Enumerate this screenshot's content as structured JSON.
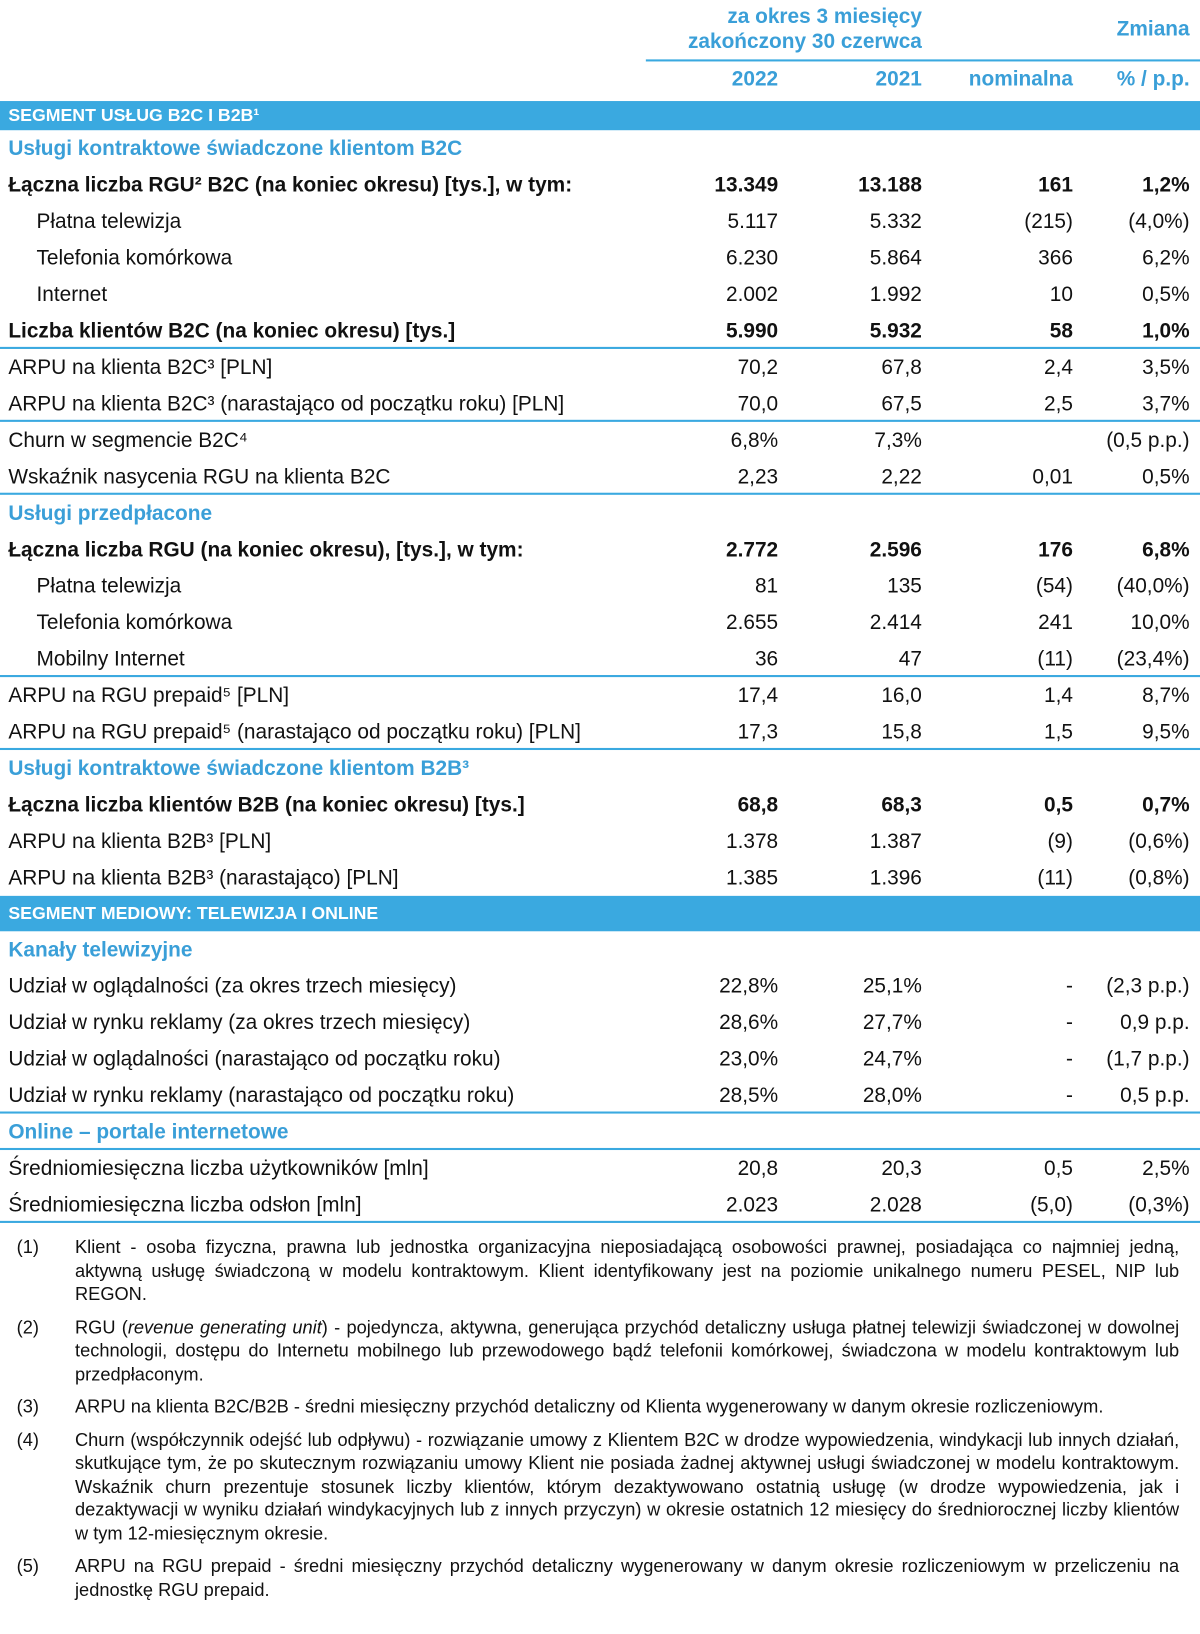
{
  "header": {
    "period_line1": "za okres 3 miesięcy",
    "period_line2": "zakończony 30 czerwca",
    "change": "Zmiana",
    "col_2022": "2022",
    "col_2021": "2021",
    "col_nominal": "nominalna",
    "col_pct": "% / p.p."
  },
  "colors": {
    "accent": "#3aa9e0",
    "subheader_text": "#3a9fd8"
  },
  "rows": [
    {
      "type": "band",
      "label": "SEGMENT USŁUG B2C I B2B¹"
    },
    {
      "type": "sub",
      "label": "Usługi kontraktowe świadczone klientom B2C"
    },
    {
      "type": "bold",
      "label": "Łączna liczba RGU² B2C (na koniec okresu) [tys.], w tym:",
      "values": [
        "13.349",
        "13.188",
        "161",
        "1,2%"
      ]
    },
    {
      "type": "ind",
      "label": "Płatna telewizja",
      "values": [
        "5.117",
        "5.332",
        "(215)",
        "(4,0%)"
      ]
    },
    {
      "type": "ind",
      "label": "Telefonia komórkowa",
      "values": [
        "6.230",
        "5.864",
        "366",
        "6,2%"
      ]
    },
    {
      "type": "ind",
      "label": "Internet",
      "values": [
        "2.002",
        "1.992",
        "10",
        "0,5%"
      ]
    },
    {
      "type": "bold",
      "line": true,
      "label": "Liczba klientów B2C (na koniec okresu) [tys.]",
      "values": [
        "5.990",
        "5.932",
        "58",
        "1,0%"
      ]
    },
    {
      "type": "norm",
      "label": "ARPU na klienta B2C³ [PLN]",
      "values": [
        "70,2",
        "67,8",
        "2,4",
        "3,5%"
      ]
    },
    {
      "type": "norm",
      "line": true,
      "label": "ARPU na klienta B2C³ (narastająco od początku roku) [PLN]",
      "values": [
        "70,0",
        "67,5",
        "2,5",
        "3,7%"
      ]
    },
    {
      "type": "norm",
      "label": "Churn w segmencie B2C⁴",
      "values": [
        "6,8%",
        "7,3%",
        "",
        "(0,5 p.p.)"
      ]
    },
    {
      "type": "norm",
      "line": true,
      "label": "Wskaźnik nasycenia RGU na klienta B2C",
      "values": [
        "2,23",
        "2,22",
        "0,01",
        "0,5%"
      ]
    },
    {
      "type": "sub",
      "label": "Usługi przedpłacone"
    },
    {
      "type": "bold",
      "label": "Łączna liczba RGU (na koniec okresu), [tys.], w tym:",
      "values": [
        "2.772",
        "2.596",
        "176",
        "6,8%"
      ]
    },
    {
      "type": "ind",
      "label": "Płatna telewizja",
      "values": [
        "81",
        "135",
        "(54)",
        "(40,0%)"
      ]
    },
    {
      "type": "ind",
      "label": "Telefonia komórkowa",
      "values": [
        "2.655",
        "2.414",
        "241",
        "10,0%"
      ]
    },
    {
      "type": "ind",
      "line": true,
      "label": "Mobilny Internet",
      "values": [
        "36",
        "47",
        "(11)",
        "(23,4%)"
      ]
    },
    {
      "type": "norm",
      "label": "ARPU na RGU prepaid⁵ [PLN]",
      "values": [
        "17,4",
        "16,0",
        "1,4",
        "8,7%"
      ]
    },
    {
      "type": "norm",
      "line": true,
      "label": "ARPU na RGU prepaid⁵ (narastająco od początku roku) [PLN]",
      "values": [
        "17,3",
        "15,8",
        "1,5",
        "9,5%"
      ]
    },
    {
      "type": "sub",
      "label": "Usługi kontraktowe świadczone klientom B2B³"
    },
    {
      "type": "bold",
      "label": "Łączna liczba klientów B2B (na koniec okresu) [tys.]",
      "values": [
        "68,8",
        "68,3",
        "0,5",
        "0,7%"
      ]
    },
    {
      "type": "norm",
      "label": "ARPU na klienta B2B³ [PLN]",
      "values": [
        "1.378",
        "1.387",
        "(9)",
        "(0,6%)"
      ]
    },
    {
      "type": "norm",
      "label": "ARPU na klienta B2B³ (narastająco) [PLN]",
      "values": [
        "1.385",
        "1.396",
        "(11)",
        "(0,8%)"
      ]
    },
    {
      "type": "band2",
      "label": "SEGMENT MEDIOWY: TELEWIZJA I ONLINE"
    },
    {
      "type": "sub",
      "label": "Kanały telewizyjne"
    },
    {
      "type": "norm",
      "label": "Udział w oglądalności (za okres trzech miesięcy)",
      "values": [
        "22,8%",
        "25,1%",
        "-",
        "(2,3 p.p.)"
      ]
    },
    {
      "type": "norm",
      "label": "Udział w rynku reklamy (za okres trzech miesięcy)",
      "values": [
        "28,6%",
        "27,7%",
        "-",
        "0,9 p.p."
      ]
    },
    {
      "type": "norm",
      "label": "Udział w oglądalności (narastająco od początku roku)",
      "values": [
        "23,0%",
        "24,7%",
        "-",
        "(1,7 p.p.)"
      ]
    },
    {
      "type": "norm",
      "line": true,
      "label": "Udział w rynku reklamy (narastająco od początku roku)",
      "values": [
        "28,5%",
        "28,0%",
        "-",
        "0,5 p.p."
      ]
    },
    {
      "type": "sub",
      "line": true,
      "label": "Online – portale internetowe"
    },
    {
      "type": "norm",
      "label": "Średniomiesięczna liczba użytkowników [mln]",
      "values": [
        "20,8",
        "20,3",
        "0,5",
        "2,5%"
      ]
    },
    {
      "type": "norm",
      "line": true,
      "label": "Średniomiesięczna liczba odsłon [mln]",
      "values": [
        "2.023",
        "2.028",
        "(5,0)",
        "(0,3%)"
      ]
    }
  ],
  "footnotes": [
    {
      "num": "(1)",
      "pre": "Klient - osoba fizyczna, prawna lub jednostka organizacyjna nieposiadającą osobowości prawnej, posiadająca co najmniej jedną, aktywną usługę świadczoną w modelu kontraktowym. Klient identyfikowany jest na poziomie unikalnego numeru PESEL, NIP lub REGON."
    },
    {
      "num": "(2)",
      "pre": "RGU (",
      "italic": "revenue generating unit",
      "post": ") - pojedyncza, aktywna, generująca przychód detaliczny usługa płatnej telewizji świadczonej w dowolnej technologii, dostępu do Internetu mobilnego lub przewodowego bądź telefonii komórkowej, świadczona w modelu kontraktowym lub przedpłaconym."
    },
    {
      "num": "(3)",
      "pre": "ARPU na klienta B2C/B2B - średni miesięczny przychód detaliczny od Klienta wygenerowany w danym okresie rozliczeniowym."
    },
    {
      "num": "(4)",
      "pre": "Churn (współczynnik odejść lub odpływu) - rozwiązanie umowy z Klientem B2C w drodze wypowiedzenia, windykacji lub innych działań, skutkujące tym, że po skutecznym rozwiązaniu umowy Klient nie posiada żadnej aktywnej usługi świadczonej w modelu kontraktowym. Wskaźnik churn prezentuje stosunek liczby klientów, którym dezaktywowano ostatnią usługę (w drodze wypowiedzenia, jak i dezaktywacji w wyniku działań windykacyjnych lub z innych przyczyn) w okresie ostatnich 12 miesięcy do średniorocznej liczby klientów w tym 12-miesięcznym okresie."
    },
    {
      "num": "(5)",
      "pre": "ARPU na RGU prepaid - średni miesięczny przychód detaliczny wygenerowany w danym okresie rozliczeniowym w przeliczeniu na jednostkę RGU prepaid."
    }
  ]
}
